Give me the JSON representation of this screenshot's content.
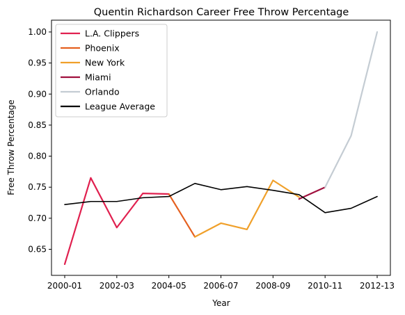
{
  "chart_data": {
    "type": "line",
    "title": "Quentin Richardson Career Free Throw Percentage",
    "xlabel": "Year",
    "ylabel": "Free Throw Percentage",
    "categories": [
      "2000-01",
      "2001-02",
      "2002-03",
      "2003-04",
      "2004-05",
      "2005-06",
      "2006-07",
      "2007-08",
      "2008-09",
      "2009-10",
      "2010-11",
      "2011-12",
      "2012-13"
    ],
    "x_tick_labels": [
      "2000-01",
      "2002-03",
      "2004-05",
      "2006-07",
      "2008-09",
      "2010-11",
      "2012-13"
    ],
    "y_ticks": [
      0.65,
      0.7,
      0.75,
      0.8,
      0.85,
      0.9,
      0.95,
      1.0
    ],
    "y_tick_labels": [
      "0.65",
      "0.70",
      "0.75",
      "0.80",
      "0.85",
      "0.90",
      "0.95",
      "1.00"
    ],
    "ylim": [
      0.608,
      1.019
    ],
    "grid": false,
    "legend_position": "top-left",
    "series": [
      {
        "name": "L.A. Clippers",
        "color": "#e0204f",
        "points": [
          [
            0,
            0.626
          ],
          [
            1,
            0.765
          ],
          [
            2,
            0.685
          ],
          [
            3,
            0.74
          ],
          [
            4,
            0.739
          ]
        ]
      },
      {
        "name": "Phoenix",
        "color": "#e5601f",
        "points": [
          [
            4,
            0.739
          ],
          [
            5,
            0.67
          ]
        ]
      },
      {
        "name": "New York",
        "color": "#f0a02a",
        "points": [
          [
            5,
            0.67
          ],
          [
            6,
            0.692
          ],
          [
            7,
            0.682
          ],
          [
            8,
            0.761
          ],
          [
            9,
            0.734
          ]
        ]
      },
      {
        "name": "Miami",
        "color": "#a0103e",
        "points": [
          [
            9,
            0.731
          ],
          [
            10,
            0.75
          ]
        ]
      },
      {
        "name": "Orlando",
        "color": "#c4ccd3",
        "points": [
          [
            10,
            0.75
          ],
          [
            11,
            0.833
          ],
          [
            12,
            1.0
          ]
        ]
      },
      {
        "name": "League Average",
        "color": "#000000",
        "points": [
          [
            0,
            0.722
          ],
          [
            1,
            0.727
          ],
          [
            2,
            0.727
          ],
          [
            3,
            0.733
          ],
          [
            4,
            0.735
          ],
          [
            5,
            0.756
          ],
          [
            6,
            0.746
          ],
          [
            7,
            0.751
          ],
          [
            8,
            0.745
          ],
          [
            9,
            0.738
          ],
          [
            10,
            0.709
          ],
          [
            11,
            0.716
          ],
          [
            12,
            0.735
          ]
        ]
      }
    ]
  }
}
